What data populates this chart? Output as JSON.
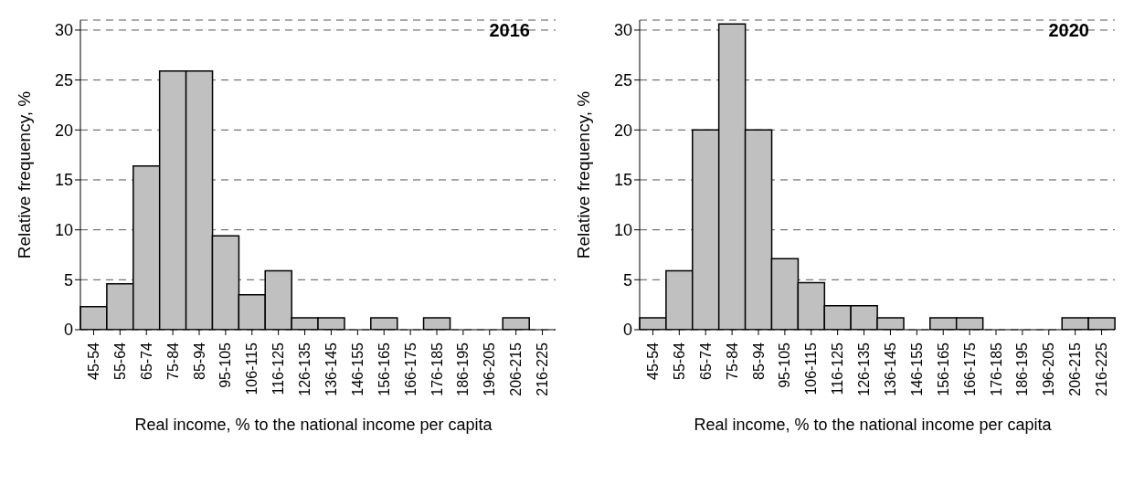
{
  "chart_data": [
    {
      "type": "bar",
      "title": "2016",
      "xlabel": "Real income, % to the national income per capita",
      "ylabel": "Relative frequency, %",
      "categories": [
        "45-54",
        "55-64",
        "65-74",
        "75-84",
        "85-94",
        "95-105",
        "106-115",
        "116-125",
        "126-135",
        "136-145",
        "146-155",
        "156-165",
        "166-175",
        "176-185",
        "186-195",
        "196-205",
        "206-215",
        "216-225"
      ],
      "values": [
        2.3,
        4.6,
        16.4,
        25.9,
        25.9,
        9.4,
        3.5,
        5.9,
        1.2,
        1.2,
        0,
        1.2,
        0,
        1.2,
        0,
        0,
        1.2,
        0
      ],
      "color": "#c0c0c0",
      "ylim": [
        0,
        31
      ],
      "yticks": [
        0,
        5,
        10,
        15,
        20,
        25,
        30
      ],
      "grid": "y",
      "legend": false
    },
    {
      "type": "bar",
      "title": "2020",
      "xlabel": "Real income, % to the national income per capita",
      "ylabel": "Relative frequency, %",
      "categories": [
        "45-54",
        "55-64",
        "65-74",
        "75-84",
        "85-94",
        "95-105",
        "106-115",
        "116-125",
        "126-135",
        "136-145",
        "146-155",
        "156-165",
        "166-175",
        "176-185",
        "186-195",
        "196-205",
        "206-215",
        "216-225"
      ],
      "values": [
        1.2,
        5.9,
        20,
        30.6,
        20,
        7.1,
        4.7,
        2.4,
        2.4,
        1.2,
        0,
        1.2,
        1.2,
        0,
        0,
        0,
        1.2,
        1.2
      ],
      "color": "#c0c0c0",
      "ylim": [
        0,
        31
      ],
      "yticks": [
        0,
        5,
        10,
        15,
        20,
        25,
        30
      ],
      "grid": "y",
      "legend": false
    }
  ]
}
